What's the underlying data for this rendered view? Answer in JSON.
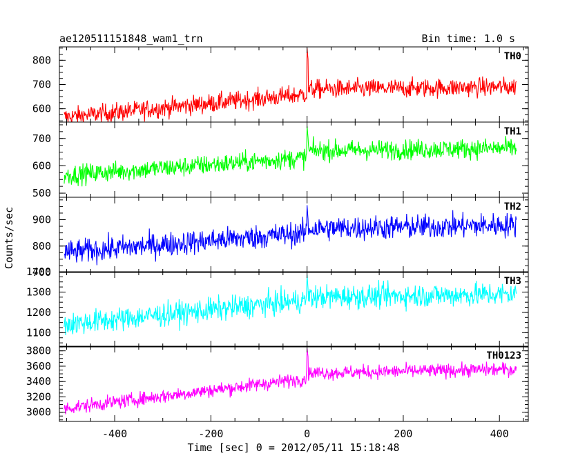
{
  "header": {
    "left_title": "ae120511151848_wam1_trn",
    "right_title": "Bin time: 1.0 s"
  },
  "chart_data": {
    "type": "line",
    "title": "ae120511151848_wam1_trn",
    "subtitle": "Bin time: 1.0 s",
    "xlabel": "Time [sec] 0 = 2012/05/11 15:18:48",
    "ylabel": "Counts/sec",
    "xlim": [
      -515,
      460
    ],
    "x_range": [
      -505,
      435
    ],
    "bin_time_s": 1.0,
    "event_x": 0,
    "x_ticks": [
      -400,
      -200,
      0,
      200,
      400
    ],
    "panels": [
      {
        "name": "TH0",
        "color": "#ff0000",
        "ylim": [
          545,
          855
        ],
        "y_ticks": [
          600,
          700,
          800
        ],
        "start": 565,
        "pre_end": 660,
        "post_level": 680,
        "post_end": 690,
        "noise": 28,
        "spike": 850
      },
      {
        "name": "TH1",
        "color": "#00ff00",
        "ylim": [
          485,
          760
        ],
        "y_ticks": [
          500,
          600,
          700
        ],
        "start": 565,
        "pre_end": 630,
        "post_level": 655,
        "post_end": 665,
        "noise": 26,
        "spike": 745
      },
      {
        "name": "TH2",
        "color": "#0000ff",
        "ylim": [
          700,
          985
        ],
        "y_ticks": [
          700,
          800,
          900
        ],
        "start": 775,
        "pre_end": 850,
        "post_level": 865,
        "post_end": 880,
        "noise": 33,
        "spike": 955
      },
      {
        "name": "TH3",
        "color": "#00ffff",
        "ylim": [
          1030,
          1400
        ],
        "y_ticks": [
          1100,
          1200,
          1300,
          1400
        ],
        "start": 1140,
        "pre_end": 1260,
        "post_level": 1275,
        "post_end": 1290,
        "noise": 42,
        "spike": 1385
      },
      {
        "name": "TH0123",
        "color": "#ff00ff",
        "ylim": [
          2880,
          3860
        ],
        "y_ticks": [
          3000,
          3200,
          3400,
          3600,
          3800
        ],
        "start": 3050,
        "pre_end": 3440,
        "post_level": 3510,
        "post_end": 3560,
        "noise": 65,
        "spike": 3830
      }
    ]
  }
}
